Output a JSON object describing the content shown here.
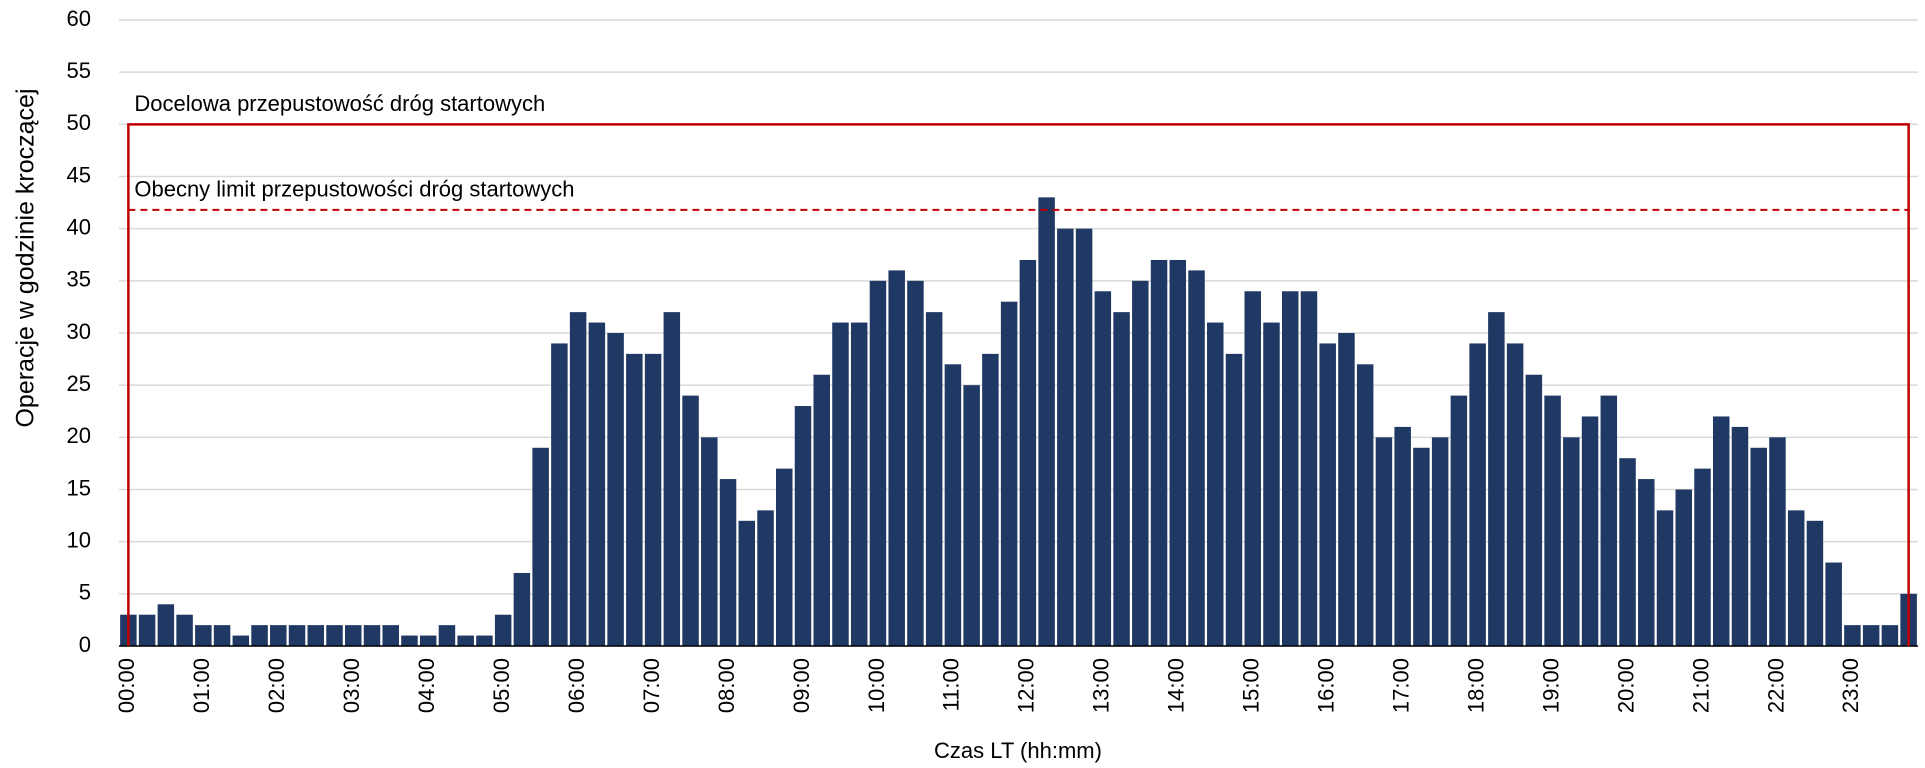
{
  "chart_data": {
    "type": "bar",
    "y_axis_label": "Operacje w godzinie kroczącej",
    "x_axis_label": "Czas LT (hh:mm)",
    "categories": [
      "00:00",
      null,
      null,
      null,
      "01:00",
      null,
      null,
      null,
      "02:00",
      null,
      null,
      null,
      "03:00",
      null,
      null,
      null,
      "04:00",
      null,
      null,
      null,
      "05:00",
      null,
      null,
      null,
      "06:00",
      null,
      null,
      null,
      "07:00",
      null,
      null,
      null,
      "08:00",
      null,
      null,
      null,
      "09:00",
      null,
      null,
      null,
      "10:00",
      null,
      null,
      null,
      "11:00",
      null,
      null,
      null,
      "12:00",
      null,
      null,
      null,
      "13:00",
      null,
      null,
      null,
      "14:00",
      null,
      null,
      null,
      "15:00",
      null,
      null,
      null,
      "16:00",
      null,
      null,
      null,
      "17:00",
      null,
      null,
      null,
      "18:00",
      null,
      null,
      null,
      "19:00",
      null,
      null,
      null,
      "20:00",
      null,
      null,
      null,
      "21:00",
      null,
      null,
      null,
      "22:00",
      null,
      null,
      null,
      "23:00",
      null,
      null,
      null
    ],
    "values": [
      3,
      3,
      4,
      3,
      2,
      2,
      1,
      2,
      2,
      2,
      2,
      2,
      2,
      2,
      2,
      1,
      1,
      2,
      1,
      1,
      3,
      7,
      19,
      29,
      32,
      31,
      30,
      28,
      28,
      32,
      24,
      20,
      16,
      12,
      13,
      17,
      23,
      26,
      31,
      31,
      35,
      36,
      35,
      32,
      27,
      25,
      28,
      33,
      37,
      43,
      40,
      40,
      34,
      32,
      35,
      37,
      37,
      36,
      31,
      28,
      34,
      31,
      34,
      34,
      29,
      30,
      27,
      20,
      21,
      19,
      20,
      24,
      29,
      32,
      29,
      26,
      24,
      20,
      22,
      24,
      18,
      16,
      13,
      15,
      17,
      22,
      21,
      19,
      20,
      13,
      12,
      8,
      2,
      2,
      2,
      5
    ],
    "color": "#203864",
    "ylim": [
      0,
      60
    ],
    "yticks": [
      0,
      5,
      10,
      15,
      20,
      25,
      30,
      35,
      40,
      45,
      50,
      55,
      60
    ],
    "grid": true,
    "reference_lines": [
      {
        "label": "Docelowa przepustowość dróg startowych",
        "value": 50,
        "style": "solid",
        "color": "#c00000"
      },
      {
        "label": "Obecny limit przepustowości dróg startowych",
        "value": 41.8,
        "style": "dashed",
        "color": "#c00000"
      }
    ]
  }
}
